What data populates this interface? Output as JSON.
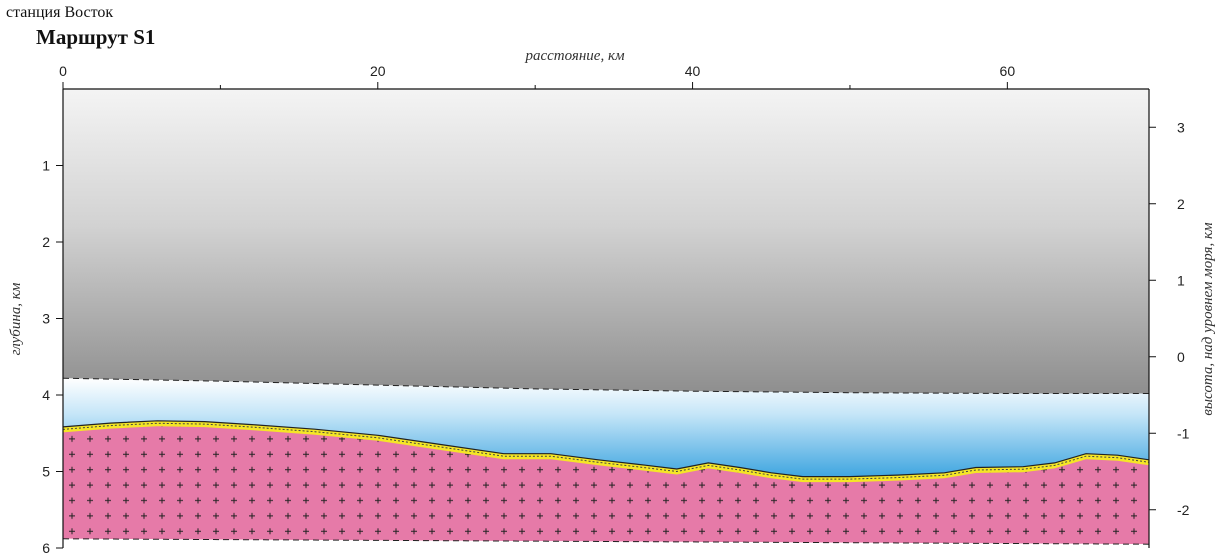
{
  "header": {
    "station": "станция Восток",
    "route": "Маршрут S1"
  },
  "chart_data": {
    "type": "area",
    "title": "Маршрут S1",
    "x_axis": {
      "label": "расстояние, км",
      "range": [
        0,
        69
      ],
      "ticks": [
        0,
        20,
        40,
        60
      ],
      "position": "top"
    },
    "y_axis_left": {
      "label": "глубина, км",
      "range": [
        0,
        6
      ],
      "ticks": [
        1,
        2,
        3,
        4,
        5,
        6
      ],
      "inverted": true
    },
    "y_axis_right": {
      "label": "высота, над уровнем моря, км",
      "ticks": [
        3,
        2,
        1,
        0,
        -1,
        -2
      ],
      "offset_from_depth": 3.5
    },
    "layers": [
      {
        "name": "ice",
        "color": "#9a9a9a"
      },
      {
        "name": "water",
        "color": "#3fa6e0"
      },
      {
        "name": "sediments",
        "color": "#f5e626"
      },
      {
        "name": "bedrock",
        "color": "#e67aa8"
      }
    ],
    "ice_base": {
      "x": [
        0,
        10,
        20,
        30,
        40,
        50,
        60,
        69
      ],
      "depth": [
        3.78,
        3.82,
        3.87,
        3.92,
        3.95,
        3.97,
        3.98,
        3.98
      ]
    },
    "bedrock_surface": {
      "x": [
        0,
        3,
        6,
        9,
        12,
        16,
        20,
        24,
        28,
        31,
        34,
        37,
        39,
        41,
        43,
        45,
        47,
        50,
        53,
        56,
        58,
        61,
        63,
        65,
        67,
        69
      ],
      "depth": [
        4.45,
        4.4,
        4.37,
        4.38,
        4.42,
        4.48,
        4.56,
        4.68,
        4.8,
        4.8,
        4.88,
        4.95,
        5.0,
        4.92,
        4.98,
        5.05,
        5.1,
        5.1,
        5.08,
        5.05,
        4.98,
        4.97,
        4.92,
        4.8,
        4.82,
        4.88
      ]
    },
    "bottom_boundary": {
      "x": [
        0,
        69
      ],
      "depth": [
        5.88,
        5.95
      ]
    },
    "grid": false
  }
}
